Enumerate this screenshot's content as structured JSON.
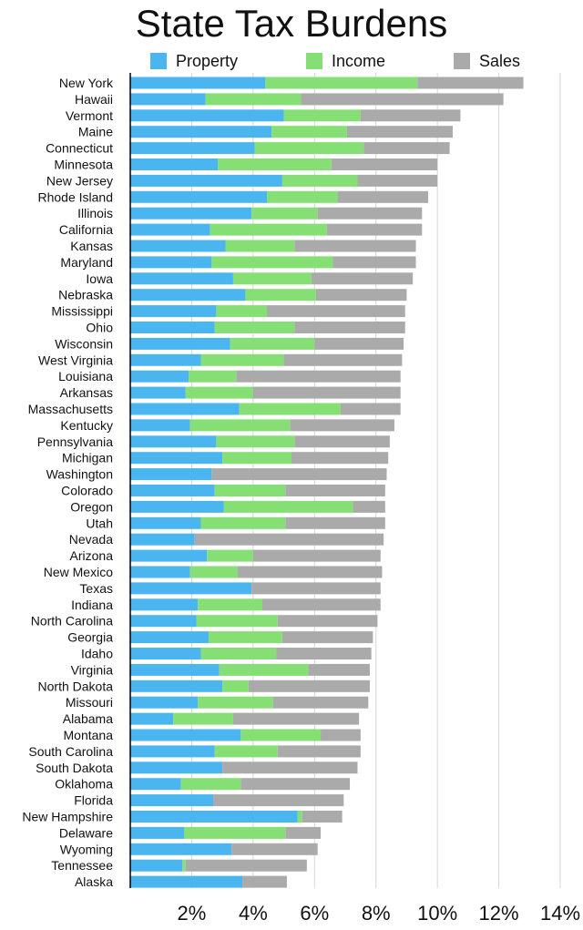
{
  "chart_data": {
    "type": "bar",
    "orientation": "horizontal",
    "stacked": true,
    "title": "State Tax Burdens",
    "xlabel": "",
    "ylabel": "",
    "xlim": [
      0,
      14
    ],
    "xticks": [
      2,
      4,
      6,
      8,
      10,
      12,
      14
    ],
    "xtick_labels": [
      "2%",
      "4%",
      "6%",
      "8%",
      "10%",
      "12%",
      "14%"
    ],
    "grid": "vertical",
    "legend_position": "top",
    "categories": [
      "New York",
      "Hawaii",
      "Vermont",
      "Maine",
      "Connecticut",
      "Minnesota",
      "New Jersey",
      "Rhode Island",
      "Illinois",
      "California",
      "Kansas",
      "Maryland",
      "Iowa",
      "Nebraska",
      "Mississippi",
      "Ohio",
      "Wisconsin",
      "West Virginia",
      "Louisiana",
      "Arkansas",
      "Massachusetts",
      "Kentucky",
      "Pennsylvania",
      "Michigan",
      "Washington",
      "Colorado",
      "Oregon",
      "Utah",
      "Nevada",
      "Arizona",
      "New Mexico",
      "Texas",
      "Indiana",
      "North Carolina",
      "Georgia",
      "Idaho",
      "Virginia",
      "North Dakota",
      "Missouri",
      "Alabama",
      "Montana",
      "South Carolina",
      "South Dakota",
      "Oklahoma",
      "Florida",
      "New Hampshire",
      "Delaware",
      "Wyoming",
      "Tennessee",
      "Alaska"
    ],
    "series": [
      {
        "name": "Property",
        "color": "#4bb5f0",
        "values": [
          4.4,
          2.45,
          5.0,
          4.6,
          4.05,
          2.85,
          4.95,
          4.45,
          3.95,
          2.6,
          3.1,
          2.65,
          3.35,
          3.75,
          2.8,
          2.75,
          3.25,
          2.3,
          1.9,
          1.8,
          3.55,
          1.95,
          2.8,
          3.0,
          2.65,
          2.75,
          3.05,
          2.3,
          2.1,
          2.5,
          1.95,
          3.95,
          2.2,
          2.15,
          2.55,
          2.3,
          2.9,
          3.0,
          2.2,
          1.4,
          3.6,
          2.75,
          3.0,
          1.65,
          2.7,
          5.45,
          1.75,
          3.3,
          1.7,
          3.65
        ]
      },
      {
        "name": "Income",
        "color": "#86df74",
        "values": [
          4.95,
          3.1,
          2.5,
          2.45,
          3.55,
          3.7,
          2.45,
          2.3,
          2.15,
          3.8,
          2.25,
          3.95,
          2.55,
          2.3,
          1.65,
          2.6,
          2.75,
          2.7,
          1.55,
          2.2,
          3.3,
          3.25,
          2.55,
          2.25,
          0.0,
          2.3,
          4.2,
          2.75,
          0.0,
          1.5,
          1.55,
          0.0,
          2.1,
          2.65,
          2.4,
          2.45,
          2.9,
          0.85,
          2.45,
          1.95,
          2.6,
          2.05,
          0.0,
          1.95,
          0.0,
          0.15,
          3.3,
          0.0,
          0.1,
          0.0
        ]
      },
      {
        "name": "Sales",
        "color": "#aaaaaa",
        "values": [
          3.45,
          6.6,
          3.25,
          3.45,
          2.8,
          3.45,
          2.6,
          2.95,
          3.4,
          3.1,
          3.95,
          2.7,
          3.3,
          2.95,
          4.5,
          3.6,
          2.9,
          3.85,
          5.35,
          4.8,
          1.95,
          3.4,
          3.1,
          3.15,
          5.7,
          3.25,
          1.05,
          3.25,
          6.15,
          4.15,
          4.7,
          4.2,
          3.85,
          3.25,
          2.95,
          3.1,
          2.0,
          3.95,
          3.1,
          4.1,
          1.3,
          2.7,
          4.4,
          3.55,
          4.25,
          1.3,
          1.15,
          2.8,
          3.95,
          1.45
        ]
      }
    ]
  }
}
